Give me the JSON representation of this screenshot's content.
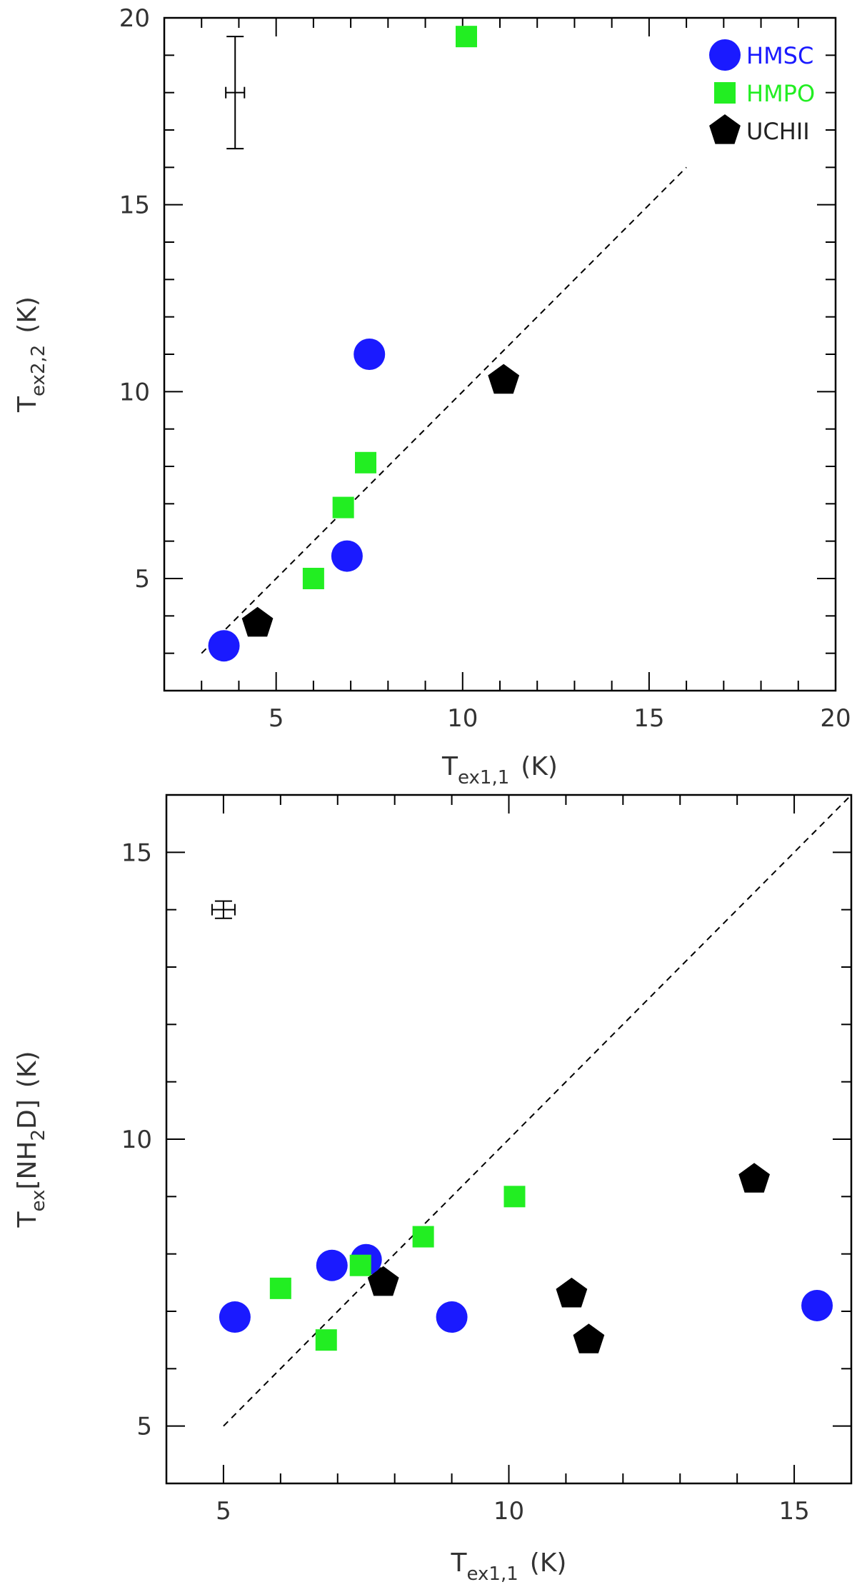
{
  "chart_data": [
    {
      "type": "scatter",
      "title": "",
      "xlabel": {
        "main": "T",
        "sub": "ex1,1",
        "unit": "(K)"
      },
      "ylabel": {
        "main": "T",
        "sub": "ex2,2",
        "unit": "(K)"
      },
      "xlim": [
        2,
        20
      ],
      "ylim": [
        2,
        20
      ],
      "xticks": [
        5,
        10,
        15,
        20
      ],
      "yticks": [
        5,
        10,
        15,
        20
      ],
      "xtick_labels": [
        "5",
        "10",
        "15",
        "20"
      ],
      "ytick_labels": [
        "5",
        "10",
        "15",
        "20"
      ],
      "reference_line": {
        "x": [
          3,
          16
        ],
        "y": [
          3,
          16
        ],
        "style": "dashed"
      },
      "error_bar": {
        "x": 3.9,
        "y": 18.0,
        "xerr": 0.25,
        "yerr": 1.5
      },
      "legend": {
        "position": "top-right",
        "entries": [
          {
            "label": "HMSC",
            "marker": "circle",
            "color": "#1a1aff"
          },
          {
            "label": "HMPO",
            "marker": "square",
            "color": "#22ee22"
          },
          {
            "label": "UCHII",
            "marker": "pentagon",
            "color": "#000000"
          }
        ]
      },
      "series": [
        {
          "name": "HMSC",
          "marker": "circle",
          "color": "#1a1aff",
          "points": [
            [
              3.6,
              3.2
            ],
            [
              6.9,
              5.6
            ],
            [
              7.5,
              11.0
            ]
          ]
        },
        {
          "name": "HMPO",
          "marker": "square",
          "color": "#22ee22",
          "points": [
            [
              6.0,
              5.0
            ],
            [
              6.8,
              6.9
            ],
            [
              7.4,
              8.1
            ],
            [
              10.1,
              19.5
            ]
          ]
        },
        {
          "name": "UCHII",
          "marker": "pentagon",
          "color": "#000000",
          "points": [
            [
              4.5,
              3.8
            ],
            [
              11.1,
              10.3
            ]
          ]
        }
      ]
    },
    {
      "type": "scatter",
      "title": "",
      "xlabel": {
        "main": "T",
        "sub": "ex1,1",
        "unit": "(K)"
      },
      "ylabel": {
        "main": "T",
        "sub": "ex",
        "bracket": "[NH",
        "sub2": "2",
        "tail": "D]",
        "unit": "(K)"
      },
      "xlim": [
        4,
        16
      ],
      "ylim": [
        4,
        16
      ],
      "xticks": [
        5,
        10,
        15
      ],
      "yticks": [
        5,
        10,
        15
      ],
      "xtick_labels": [
        "5",
        "10",
        "15"
      ],
      "ytick_labels": [
        "5",
        "10",
        "15"
      ],
      "reference_line": {
        "x": [
          5,
          16
        ],
        "y": [
          5,
          16
        ],
        "style": "dashed"
      },
      "error_bar": {
        "x": 5.0,
        "y": 14.0,
        "xerr": 0.2,
        "yerr": 0.15
      },
      "series": [
        {
          "name": "HMSC",
          "marker": "circle",
          "color": "#1a1aff",
          "points": [
            [
              5.2,
              6.9
            ],
            [
              6.9,
              7.8
            ],
            [
              7.5,
              7.9
            ],
            [
              9.0,
              6.9
            ],
            [
              15.4,
              7.1
            ]
          ]
        },
        {
          "name": "HMPO",
          "marker": "square",
          "color": "#22ee22",
          "points": [
            [
              6.0,
              7.4
            ],
            [
              6.8,
              6.5
            ],
            [
              7.4,
              7.8
            ],
            [
              8.5,
              8.3
            ],
            [
              10.1,
              9.0
            ]
          ]
        },
        {
          "name": "UCHII",
          "marker": "pentagon",
          "color": "#000000",
          "points": [
            [
              7.8,
              7.5
            ],
            [
              11.1,
              7.3
            ],
            [
              11.4,
              6.5
            ],
            [
              14.3,
              9.3
            ]
          ]
        }
      ]
    }
  ]
}
